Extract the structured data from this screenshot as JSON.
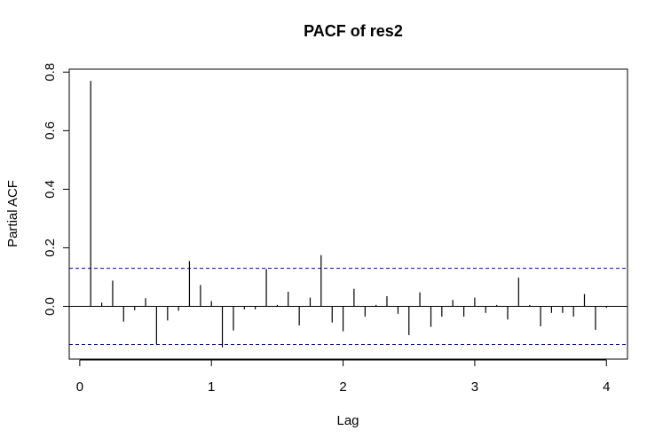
{
  "chart_data": {
    "type": "bar",
    "title": "PACF of res2",
    "xlabel": "Lag",
    "ylabel": "Partial ACF",
    "xlim": [
      -0.08,
      4.16
    ],
    "ylim": [
      -0.18,
      0.81
    ],
    "xticks": [
      0,
      1,
      2,
      3,
      4
    ],
    "xtick_labels": [
      "0",
      "1",
      "2",
      "3",
      "4"
    ],
    "yticks": [
      0.0,
      0.2,
      0.4,
      0.6,
      0.8
    ],
    "ytick_labels": [
      "0.0",
      "0.2",
      "0.4",
      "0.6",
      "0.8"
    ],
    "confidence_bound": 0.13,
    "colors": {
      "bars": "#000000",
      "confidence": "#0000cc",
      "zero_line": "#000000"
    },
    "grid": false,
    "x": [
      0.083,
      0.167,
      0.25,
      0.333,
      0.417,
      0.5,
      0.583,
      0.667,
      0.75,
      0.833,
      0.917,
      1.0,
      1.083,
      1.167,
      1.25,
      1.333,
      1.417,
      1.5,
      1.583,
      1.667,
      1.75,
      1.833,
      1.917,
      2.0,
      2.083,
      2.167,
      2.25,
      2.333,
      2.417,
      2.5,
      2.583,
      2.667,
      2.75,
      2.833,
      2.917,
      3.0,
      3.083,
      3.167,
      3.25,
      3.333,
      3.417,
      3.5,
      3.583,
      3.667,
      3.75,
      3.833,
      3.917,
      4.0
    ],
    "values": [
      0.77,
      0.013,
      0.088,
      -0.052,
      -0.013,
      0.028,
      -0.13,
      -0.048,
      -0.015,
      0.155,
      0.073,
      0.018,
      -0.14,
      -0.082,
      -0.01,
      -0.01,
      0.128,
      0.005,
      0.05,
      -0.065,
      0.03,
      0.175,
      -0.055,
      -0.085,
      0.06,
      -0.035,
      0.005,
      0.035,
      -0.025,
      -0.098,
      0.048,
      -0.07,
      -0.035,
      0.022,
      -0.035,
      0.03,
      -0.022,
      0.005,
      -0.045,
      0.098,
      0.005,
      -0.068,
      -0.022,
      -0.022,
      -0.035,
      0.042,
      -0.08,
      -0.005
    ]
  }
}
